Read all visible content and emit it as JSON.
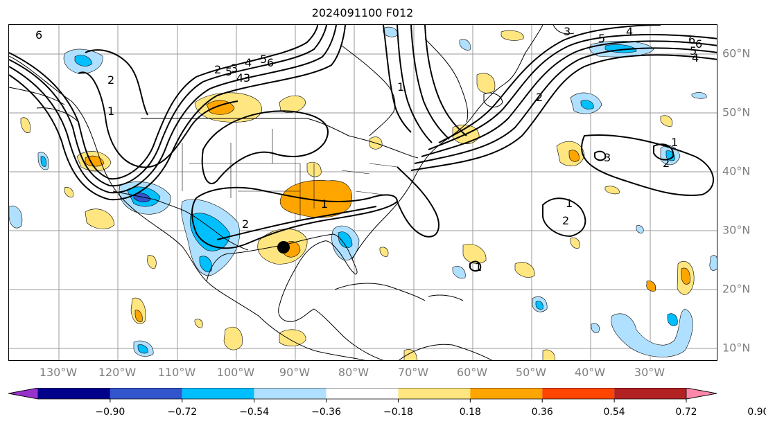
{
  "title": "2024091100 F012",
  "lon_labels": [
    "130°W",
    "120°W",
    "110°W",
    "100°W",
    "90°W",
    "80°W",
    "70°W",
    "60°W",
    "50°W",
    "40°W",
    "30°W"
  ],
  "lat_labels": [
    "60°N",
    "50°N",
    "40°N",
    "30°N",
    "20°N",
    "10°N"
  ],
  "colorbar": {
    "ticks": [
      "−0.90",
      "−0.72",
      "−0.54",
      "−0.36",
      "−0.18",
      "0.18",
      "0.36",
      "0.54",
      "0.72",
      "0.90"
    ],
    "colors": [
      "#9932cc",
      "#00008b",
      "#3355cc",
      "#00bfff",
      "#b0e0ff",
      "#ffffff",
      "#ffe680",
      "#ffa500",
      "#ff4500",
      "#b22222",
      "#ff88aa"
    ]
  },
  "contour_labels": [
    "6",
    "5",
    "4",
    "3",
    "2",
    "1",
    "6",
    "5",
    "4",
    "3",
    "2",
    "6",
    "5",
    "4",
    "3",
    "2",
    "1",
    "6",
    "5",
    "4",
    "1",
    "2",
    "1",
    "3",
    "1",
    "2",
    "2",
    "1"
  ],
  "marker": "storm-center",
  "map": {
    "projection": "equirectangular",
    "lon_range": [
      -137,
      -17
    ],
    "lat_range": [
      8,
      65
    ],
    "grid": true
  }
}
